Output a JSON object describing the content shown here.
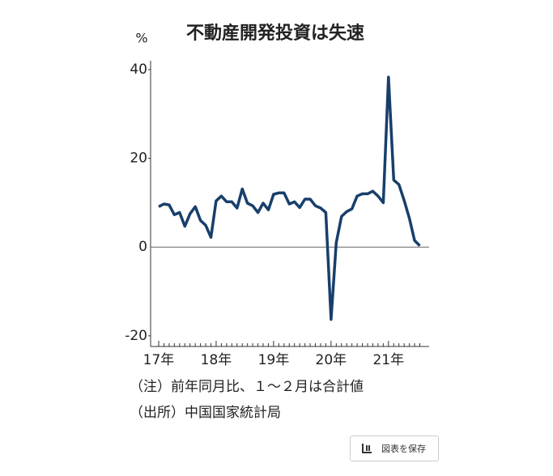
{
  "chart_data": {
    "type": "line",
    "title": "不動産開発投資は失速",
    "unit_label": "%",
    "categories": [
      "17年",
      null,
      null,
      null,
      null,
      null,
      null,
      null,
      null,
      null,
      null,
      "18年",
      null,
      null,
      null,
      null,
      null,
      null,
      null,
      null,
      null,
      null,
      "19年",
      null,
      null,
      null,
      null,
      null,
      null,
      null,
      null,
      null,
      null,
      "20年",
      null,
      null,
      null,
      null,
      null,
      null,
      null,
      null,
      null,
      null,
      "21年",
      null,
      null,
      null,
      null,
      null,
      null
    ],
    "values": [
      9.1,
      9.7,
      9.5,
      7.3,
      7.8,
      4.7,
      7.5,
      9.1,
      6.0,
      4.9,
      2.2,
      10.4,
      11.5,
      10.2,
      10.2,
      8.8,
      13.1,
      9.9,
      9.3,
      7.8,
      9.9,
      8.4,
      11.9,
      12.2,
      12.2,
      9.7,
      10.2,
      8.9,
      10.8,
      10.8,
      9.3,
      8.8,
      7.8,
      -16.3,
      1.0,
      6.9,
      8.0,
      8.6,
      11.5,
      12.0,
      12.0,
      12.6,
      11.5,
      10.0,
      38.3,
      15.1,
      14.1,
      10.5,
      6.5,
      1.5,
      0.3
    ],
    "color": "#183f6b",
    "ylim": [
      -22.4,
      42
    ],
    "yticks": [
      40,
      20,
      0,
      -20
    ],
    "notes": [
      "（注）前年同月比、１～２月は合計値",
      "（出所）中国国家統計局"
    ]
  },
  "save_button": "図表を保存"
}
